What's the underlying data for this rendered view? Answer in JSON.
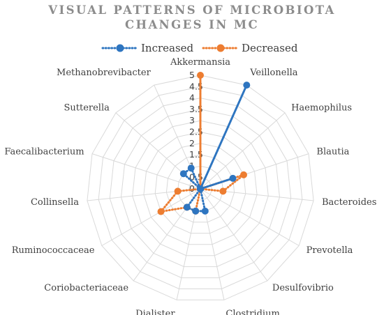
{
  "chart_data": {
    "type": "radar",
    "title_lines": [
      "VISUAL PATTERNS OF MICROBIOTA",
      "CHANGES IN MC"
    ],
    "categories": [
      "Akkermansia",
      "Veillonella",
      "Haemophilus",
      "Blautia",
      "Bacteroides",
      "Prevotella",
      "Desulfovibrio",
      "Clostridium",
      "Dialister",
      "Coriobacteriaceae",
      "Ruminococcaceae",
      "Collinsella",
      "Faecalibacterium",
      "Sutterella",
      "Methanobrevibacter"
    ],
    "rlim": [
      0,
      5
    ],
    "ticks": [
      "0",
      "0.5",
      "1",
      "1.5",
      "2",
      "2.5",
      "3",
      "3.5",
      "4",
      "4.5",
      "5"
    ],
    "series": [
      {
        "name": "Increased",
        "color": "#2e75c0",
        "values": [
          0,
          5,
          0,
          1.5,
          0,
          0,
          0,
          1,
          1,
          1,
          0,
          0,
          0,
          1,
          1
        ]
      },
      {
        "name": "Decreased",
        "color": "#ed7d31",
        "values": [
          5,
          0,
          0,
          2,
          1,
          0,
          0,
          0,
          1,
          1,
          2,
          1,
          0,
          0,
          0
        ]
      }
    ],
    "legend_position": "top",
    "grid": true
  }
}
